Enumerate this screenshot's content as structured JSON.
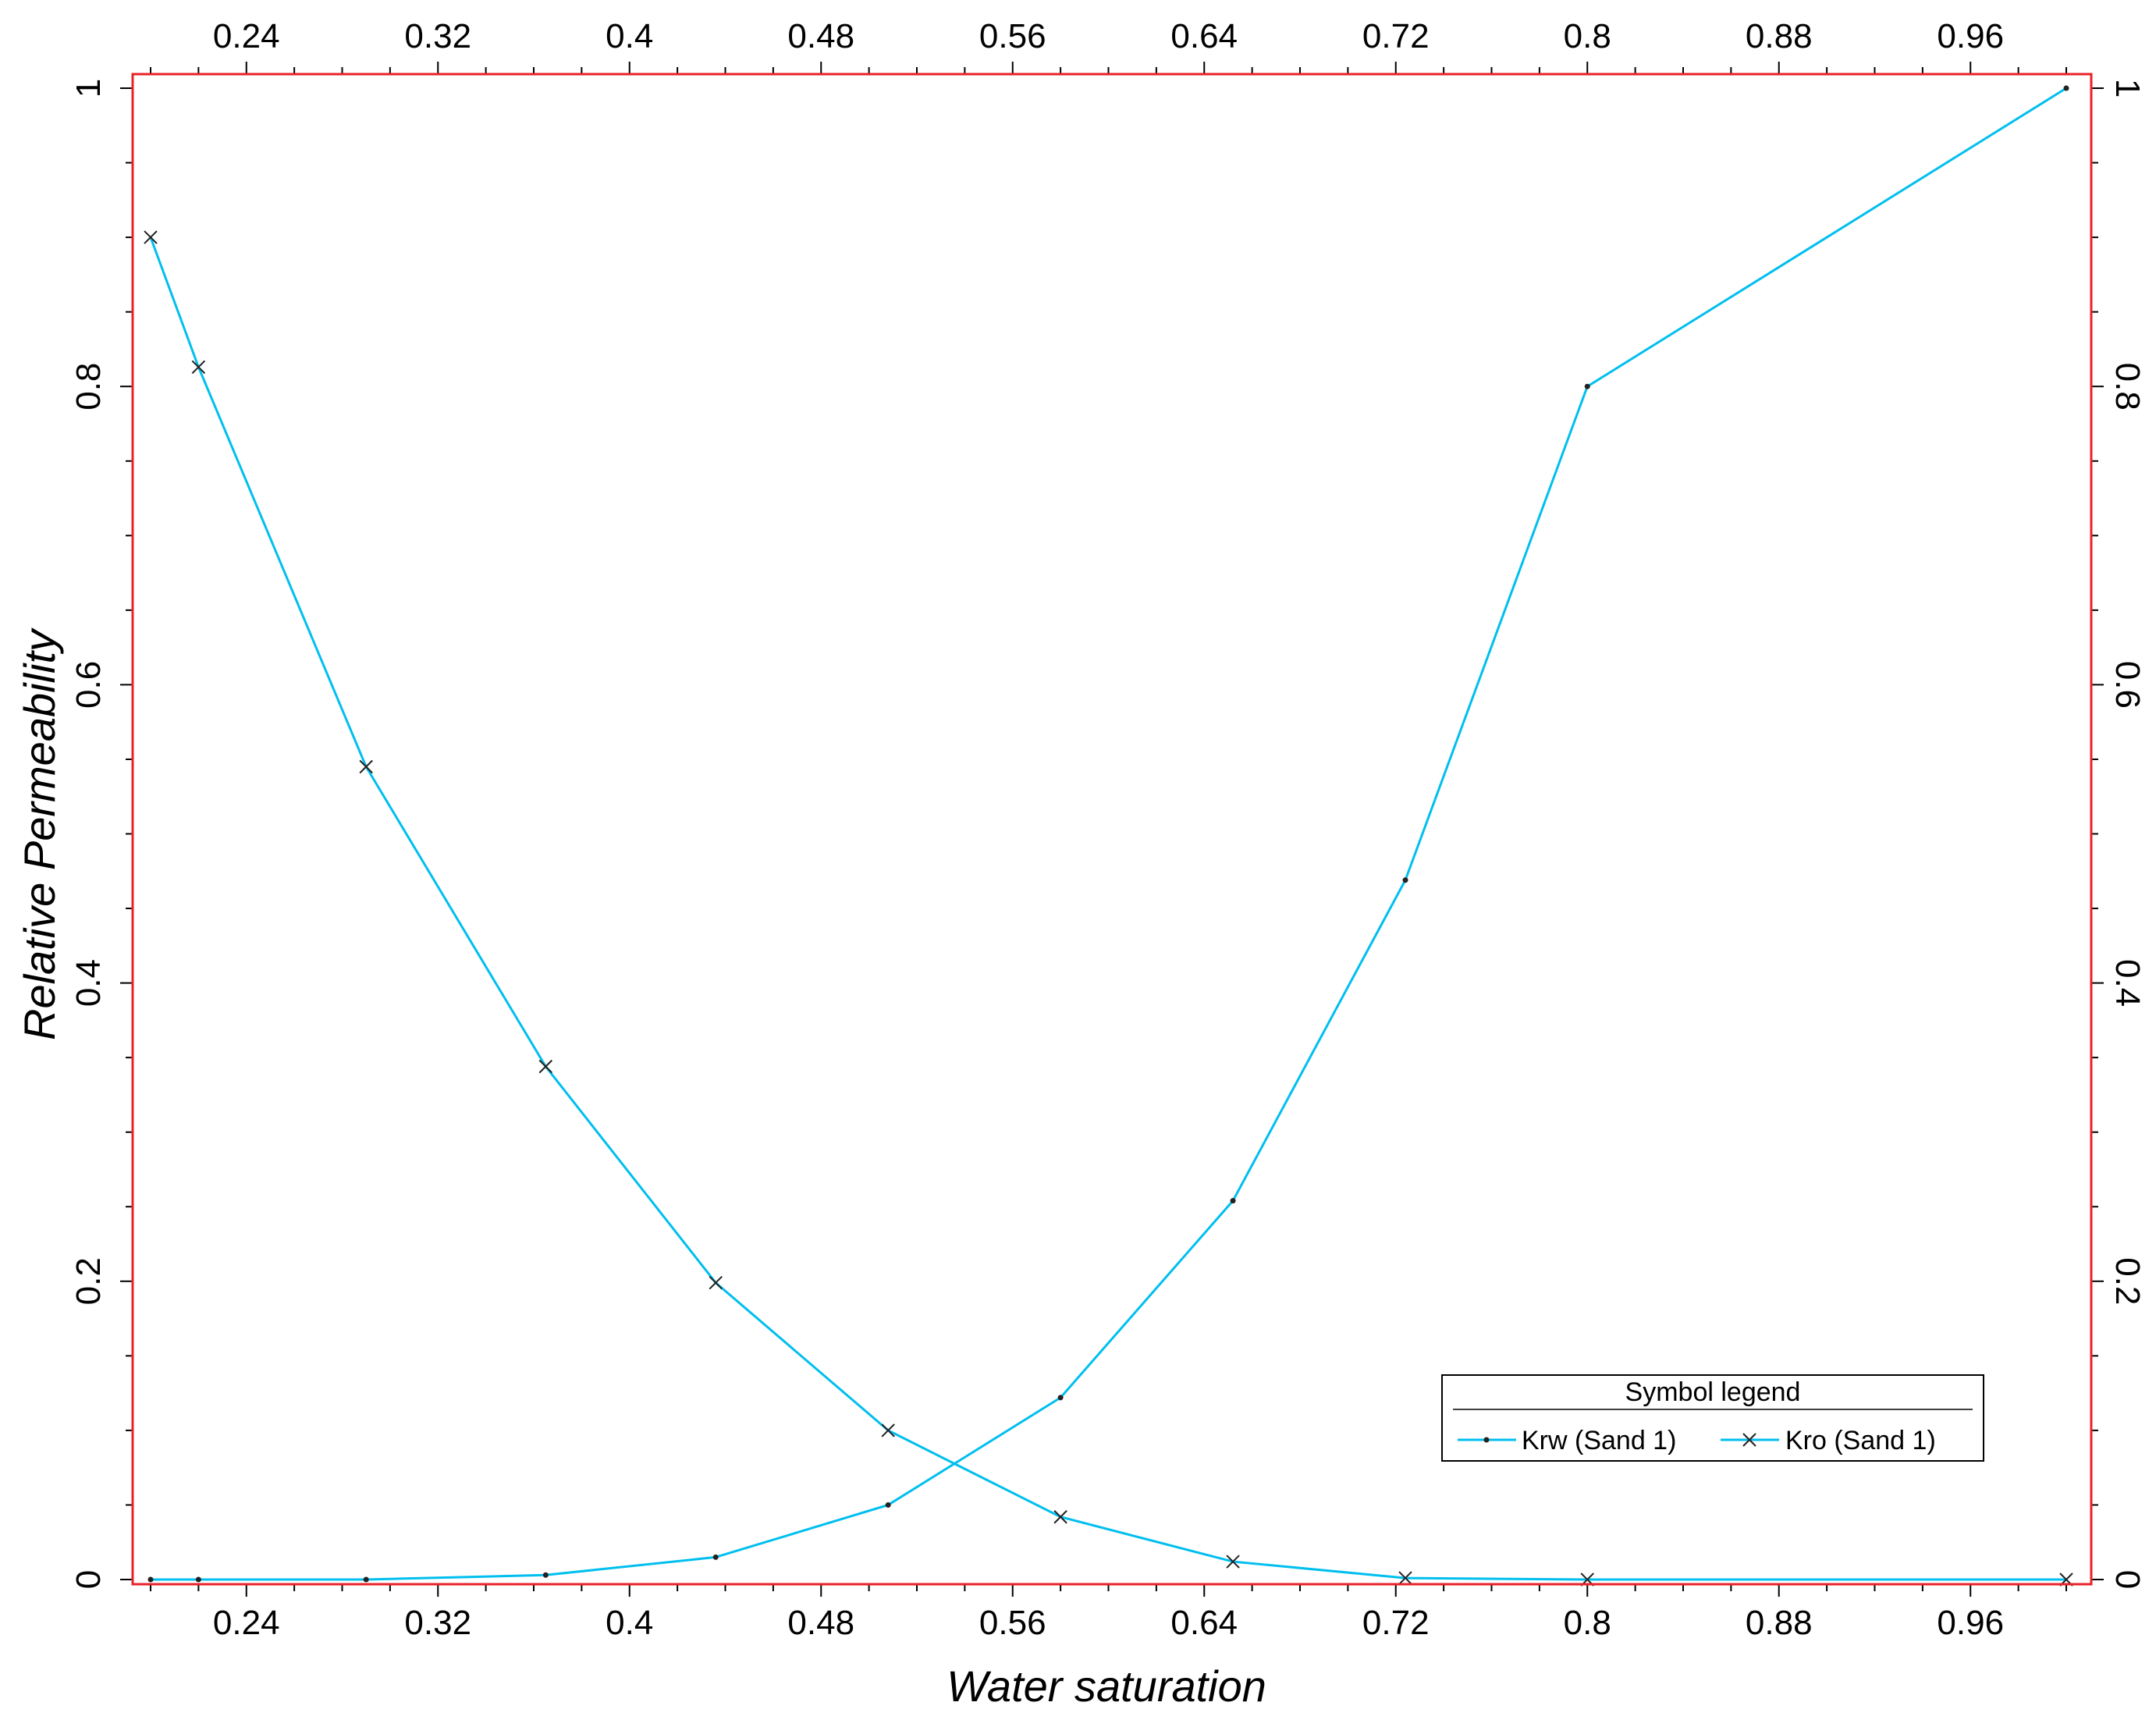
{
  "chart_data": {
    "type": "line",
    "title": "",
    "xlabel": "Water saturation",
    "ylabel": "Relative Permeability",
    "xlim": [
      0.2,
      1.0
    ],
    "ylim": [
      0,
      1
    ],
    "x_ticks": [
      0.24,
      0.32,
      0.4,
      0.48,
      0.56,
      0.64,
      0.72,
      0.8,
      0.88,
      0.96
    ],
    "x_tick_labels": [
      "0.24",
      "0.32",
      "0.4",
      "0.48",
      "0.56",
      "0.64",
      "0.72",
      "0.8",
      "0.88",
      "0.96"
    ],
    "y_ticks": [
      0,
      0.2,
      0.4,
      0.6,
      0.8,
      1
    ],
    "y_tick_labels": [
      "0",
      "0.2",
      "0.4",
      "0.6",
      "0.8",
      "1"
    ],
    "grid": false,
    "legend": {
      "title": "Symbol legend",
      "placement": "bottom-right"
    },
    "series": [
      {
        "name": "Krw (Sand 1)",
        "marker": "dot",
        "color": "#00BFEF",
        "x": [
          0.2,
          0.22,
          0.29,
          0.365,
          0.436,
          0.508,
          0.58,
          0.652,
          0.724,
          0.8,
          1.0
        ],
        "y": [
          0.0,
          0.0,
          0.0,
          0.003,
          0.015,
          0.05,
          0.122,
          0.254,
          0.469,
          0.8,
          1.0
        ]
      },
      {
        "name": "Kro (Sand 1)",
        "marker": "x",
        "color": "#00BFEF",
        "x": [
          0.2,
          0.22,
          0.29,
          0.365,
          0.436,
          0.508,
          0.58,
          0.652,
          0.724,
          0.8,
          1.0
        ],
        "y": [
          0.9,
          0.813,
          0.545,
          0.344,
          0.199,
          0.1,
          0.042,
          0.012,
          0.001,
          0.0,
          0.0
        ]
      }
    ]
  },
  "colors": {
    "frame": "#E8222A",
    "axis_ticks": "#000000",
    "series_line": "#00BFEF",
    "marker": "#222222"
  }
}
